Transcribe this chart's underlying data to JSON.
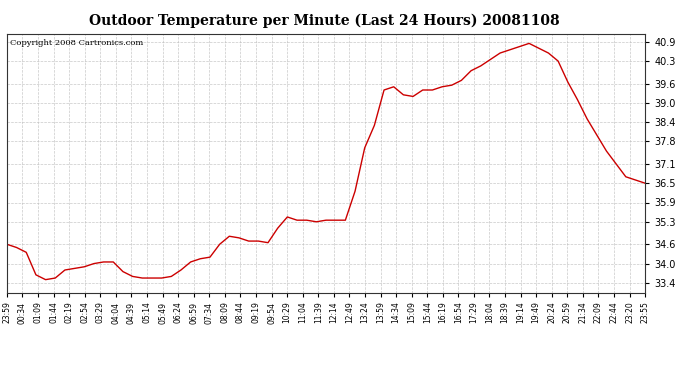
{
  "title": "Outdoor Temperature per Minute (Last 24 Hours) 20081108",
  "copyright": "Copyright 2008 Cartronics.com",
  "line_color": "#cc0000",
  "background_color": "#ffffff",
  "grid_color": "#bbbbbb",
  "yticks": [
    33.4,
    34.0,
    34.6,
    35.3,
    35.9,
    36.5,
    37.1,
    37.8,
    38.4,
    39.0,
    39.6,
    40.3,
    40.9
  ],
  "ylim": [
    33.1,
    41.15
  ],
  "xtick_labels": [
    "23:59",
    "00:34",
    "01:09",
    "01:44",
    "02:19",
    "02:54",
    "03:29",
    "04:04",
    "04:39",
    "05:14",
    "05:49",
    "06:24",
    "06:59",
    "07:34",
    "08:09",
    "08:44",
    "09:19",
    "09:54",
    "10:29",
    "11:04",
    "11:39",
    "12:14",
    "12:49",
    "13:24",
    "13:59",
    "14:34",
    "15:09",
    "15:44",
    "16:19",
    "16:54",
    "17:29",
    "18:04",
    "18:39",
    "19:14",
    "19:49",
    "20:24",
    "20:59",
    "21:34",
    "22:09",
    "22:44",
    "23:20",
    "23:55"
  ],
  "y_values": [
    34.6,
    34.5,
    34.35,
    33.65,
    33.5,
    33.55,
    33.8,
    33.85,
    33.9,
    34.0,
    34.05,
    34.05,
    33.75,
    33.6,
    33.55,
    33.55,
    33.55,
    33.6,
    33.8,
    34.05,
    34.15,
    34.2,
    34.6,
    34.85,
    34.8,
    34.7,
    34.7,
    34.65,
    35.1,
    35.45,
    35.35,
    35.35,
    35.3,
    35.35,
    35.35,
    35.35,
    36.25,
    37.6,
    38.3,
    39.4,
    39.5,
    39.25,
    39.2,
    39.4,
    39.4,
    39.5,
    39.55,
    39.7,
    40.0,
    40.15,
    40.35,
    40.55,
    40.65,
    40.75,
    40.85,
    40.7,
    40.55,
    40.3,
    39.65,
    39.1,
    38.5,
    38.0,
    37.5,
    37.1,
    36.7,
    36.6,
    36.5
  ],
  "title_fontsize": 10,
  "copyright_fontsize": 6,
  "tick_fontsize": 7,
  "xtick_fontsize": 5.5
}
